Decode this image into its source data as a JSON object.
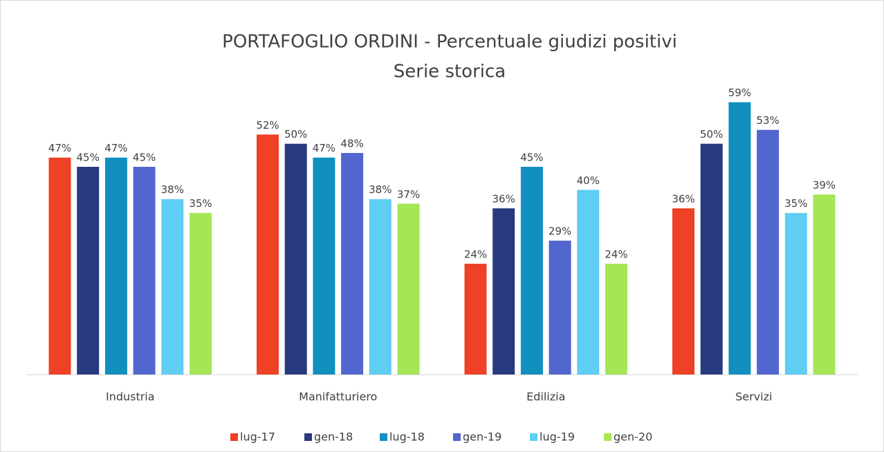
{
  "chart_data": {
    "type": "bar",
    "title": "PORTAFOGLIO ORDINI - Percentuale giudizi positivi",
    "subtitle": "Serie storica",
    "categories": [
      "Industria",
      "Manifatturiero",
      "Edilizia",
      "Servizi"
    ],
    "ylim": [
      0,
      60
    ],
    "legend": "bottom",
    "series": [
      {
        "name": "lug-17",
        "color": "#ee4125",
        "values": [
          47,
          52,
          24,
          36
        ],
        "value_labels": [
          "47%",
          "52%",
          "24%",
          "36%"
        ]
      },
      {
        "name": "gen-18",
        "color": "#283a7e",
        "values": [
          45,
          50,
          36,
          50
        ],
        "value_labels": [
          "45%",
          "50%",
          "36%",
          "50%"
        ]
      },
      {
        "name": "lug-18",
        "color": "#1190c0",
        "values": [
          47,
          47,
          45,
          59
        ],
        "value_labels": [
          "47%",
          "47%",
          "45%",
          "59%"
        ]
      },
      {
        "name": "gen-19",
        "color": "#5166cf",
        "values": [
          45,
          48,
          29,
          53
        ],
        "value_labels": [
          "45%",
          "48%",
          "29%",
          "53%"
        ]
      },
      {
        "name": "lug-19",
        "color": "#5fcdf4",
        "values": [
          38,
          38,
          40,
          35
        ],
        "value_labels": [
          "38%",
          "38%",
          "40%",
          "35%"
        ]
      },
      {
        "name": "gen-20",
        "color": "#a4e655",
        "values": [
          35,
          37,
          24,
          39
        ],
        "value_labels": [
          "35%",
          "37%",
          "24%",
          "39%"
        ]
      }
    ]
  }
}
